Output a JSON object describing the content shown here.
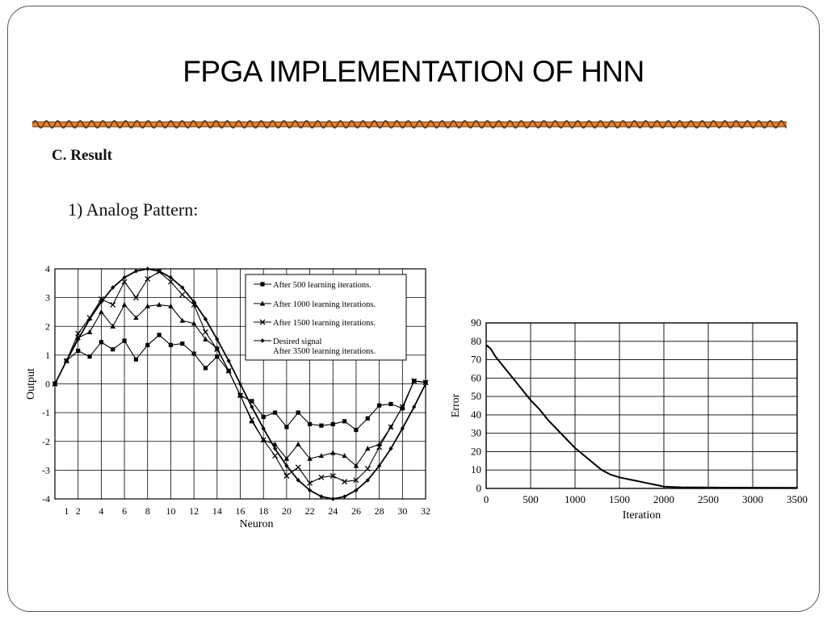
{
  "title": "FPGA IMPLEMENTATION OF HNN",
  "section_heading": "C. Result",
  "sub_heading": "1) Analog Pattern:",
  "colors": {
    "divider_orange": "#e8822e",
    "divider_dark": "#5a3a1a"
  },
  "chart_data": [
    {
      "type": "line",
      "xlabel": "Neuron",
      "ylabel": "Output",
      "x_ticks": [
        1,
        2,
        4,
        6,
        8,
        10,
        12,
        14,
        16,
        18,
        20,
        22,
        24,
        26,
        28,
        30,
        32
      ],
      "y_ticks": [
        4,
        3,
        2,
        1,
        0,
        -1,
        -2,
        -3,
        -4
      ],
      "xlim": [
        0,
        32
      ],
      "ylim": [
        -4,
        4
      ],
      "grid": true,
      "legend_position": "top-right",
      "x": [
        0,
        1,
        2,
        3,
        4,
        5,
        6,
        7,
        8,
        9,
        10,
        11,
        12,
        13,
        14,
        15,
        16,
        17,
        18,
        19,
        20,
        21,
        22,
        23,
        24,
        25,
        26,
        27,
        28,
        29,
        30,
        31,
        32
      ],
      "series": [
        {
          "name": "After 500 learning iterations.",
          "marker": "square",
          "values": [
            0,
            0.8,
            1.15,
            0.95,
            1.45,
            1.2,
            1.5,
            0.85,
            1.35,
            1.7,
            1.35,
            1.4,
            1.05,
            0.55,
            0.95,
            0.45,
            -0.4,
            -0.6,
            -1.15,
            -1.0,
            -1.5,
            -1.0,
            -1.4,
            -1.45,
            -1.4,
            -1.3,
            -1.6,
            -1.2,
            -0.75,
            -0.7,
            -0.85,
            0.1,
            0.05
          ]
        },
        {
          "name": "After 1000 learning iterations.",
          "marker": "triangle",
          "values": [
            0,
            0.8,
            1.6,
            1.8,
            2.5,
            2.0,
            2.75,
            2.3,
            2.7,
            2.75,
            2.7,
            2.2,
            2.1,
            1.55,
            1.25,
            0.45,
            -0.4,
            -1.3,
            -1.95,
            -2.1,
            -2.6,
            -2.1,
            -2.6,
            -2.5,
            -2.4,
            -2.5,
            -2.85,
            -2.25,
            -2.1,
            -1.5,
            -0.8,
            0.1,
            0.05
          ]
        },
        {
          "name": "After 1500 learning iterations.",
          "marker": "x",
          "values": [
            0,
            0.8,
            1.75,
            2.3,
            2.95,
            2.75,
            3.55,
            3.0,
            3.65,
            3.9,
            3.55,
            3.1,
            2.75,
            1.8,
            1.2,
            0.45,
            -0.4,
            -1.25,
            -1.95,
            -2.5,
            -3.2,
            -2.9,
            -3.45,
            -3.25,
            -3.2,
            -3.4,
            -3.35,
            -2.95,
            -2.2,
            -1.5,
            -0.8,
            0.1,
            0.05
          ]
        },
        {
          "name": "Desired signal",
          "name_line2": "After 3500 learning iterations.",
          "marker": "diamond",
          "values": [
            0,
            0.8,
            1.55,
            2.25,
            2.85,
            3.35,
            3.7,
            3.92,
            4.0,
            3.92,
            3.7,
            3.35,
            2.85,
            2.25,
            1.55,
            0.8,
            0.0,
            -0.8,
            -1.55,
            -2.25,
            -2.85,
            -3.35,
            -3.7,
            -3.92,
            -4.0,
            -3.92,
            -3.7,
            -3.35,
            -2.85,
            -2.25,
            -1.55,
            -0.8,
            0.0
          ]
        }
      ]
    },
    {
      "type": "line",
      "xlabel": "Iteration",
      "ylabel": "Error",
      "x_ticks": [
        0,
        500,
        1000,
        1500,
        2000,
        2500,
        3000,
        3500
      ],
      "y_ticks": [
        90,
        80,
        70,
        60,
        50,
        40,
        30,
        20,
        10,
        0
      ],
      "xlim": [
        0,
        3500
      ],
      "ylim": [
        0,
        90
      ],
      "grid": true,
      "series": [
        {
          "x": [
            0,
            50,
            100,
            200,
            300,
            400,
            500,
            600,
            700,
            800,
            900,
            1000,
            1100,
            1200,
            1300,
            1400,
            1500,
            1600,
            1700,
            1800,
            1900,
            2000,
            2100,
            2200,
            2500,
            3000,
            3500
          ],
          "values": [
            78,
            76,
            72,
            66,
            60,
            54,
            48,
            43,
            37,
            32,
            27,
            22,
            18,
            14,
            10,
            7.5,
            6,
            5,
            4,
            3,
            2,
            1,
            0.8,
            0.6,
            0.5,
            0.4,
            0.3
          ]
        }
      ]
    }
  ]
}
